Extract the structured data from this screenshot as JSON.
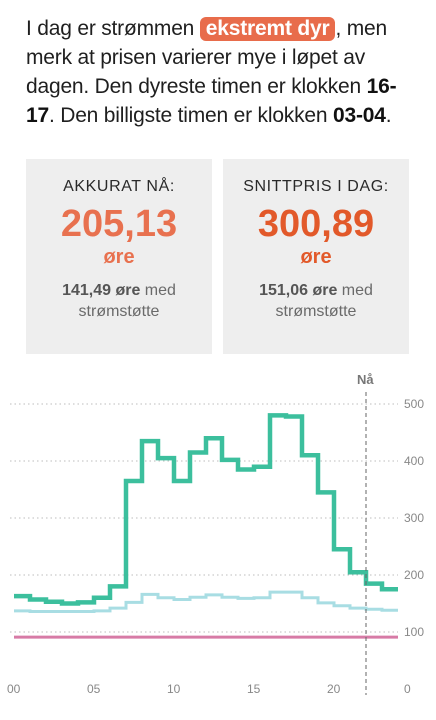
{
  "intro": {
    "p1": "I dag er strømmen ",
    "badge": "ekstremt dyr",
    "p2": ", men merk at prisen varierer mye i løpet av dagen. Den dyreste timen er klokken ",
    "expensive_hour": "16-17",
    "p3": ". Den billigste timen er klokken ",
    "cheapest_hour": "03-04",
    "p4": "."
  },
  "cards": {
    "now": {
      "title": "AKKURAT NÅ:",
      "value": "205,13",
      "unit": "øre",
      "sub_value": "141,49 øre",
      "sub_text": " med strømstøtte",
      "color": "#e8714f"
    },
    "average": {
      "title": "SNITTPRIS I DAG:",
      "value": "300,89",
      "unit": "øre",
      "sub_value": "151,06 øre",
      "sub_text": " med strømstøtte",
      "color": "#e2592a"
    }
  },
  "chart_data": {
    "type": "line",
    "now_label": "Nå",
    "now_hour": 22,
    "x_ticks": [
      "00",
      "05",
      "10",
      "15",
      "20"
    ],
    "x_tick_values": [
      0,
      5,
      10,
      15,
      20
    ],
    "y_ticks": [
      0,
      100,
      200,
      300,
      400,
      500
    ],
    "ylim": [
      0,
      500
    ],
    "xlim": [
      0,
      24
    ],
    "hours": [
      0,
      1,
      2,
      3,
      4,
      5,
      6,
      7,
      8,
      9,
      10,
      11,
      12,
      13,
      14,
      15,
      16,
      17,
      18,
      19,
      20,
      21,
      22,
      23
    ],
    "series": [
      {
        "color": "#3cbf9d",
        "values": [
          163,
          157,
          153,
          150,
          152,
          160,
          180,
          365,
          435,
          405,
          365,
          415,
          440,
          402,
          385,
          390,
          480,
          478,
          410,
          345,
          245,
          205,
          185,
          175
        ]
      },
      {
        "color": "#a8dde3",
        "values": [
          137,
          136,
          136,
          136,
          136,
          137,
          142,
          152,
          166,
          160,
          157,
          161,
          165,
          161,
          159,
          160,
          170,
          170,
          160,
          151,
          146,
          142,
          140,
          138
        ]
      }
    ],
    "reference_value": 91,
    "reference_color": "#d77ba6"
  }
}
